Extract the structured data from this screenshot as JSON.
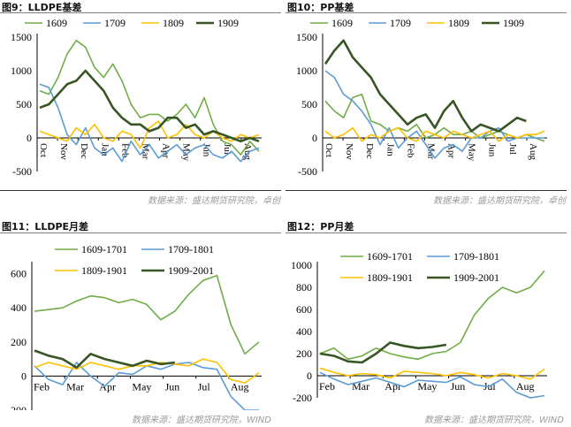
{
  "colors": {
    "green": "#70ad47",
    "blue": "#5b9bd5",
    "yellow": "#ffc000",
    "darkgreen": "#375623",
    "axis": "#000000",
    "grid": "#d9d9d9"
  },
  "panels": [
    {
      "title": "图9：LLDPE基差",
      "source": "数据来源：盛达期货研究院，卓创"
    },
    {
      "title": "图10：PP基差",
      "source": "数据来源：盛达期货研究院，卓创"
    },
    {
      "title": "图11：LLDPE月差",
      "source": "数据来源：盛达期货研究院，WIND"
    },
    {
      "title": "图12：PP月差",
      "source": "数据来源：盛达期货研究院，WIND"
    }
  ],
  "chart_data": [
    {
      "type": "line",
      "title": "LLDPE基差",
      "x_labels": [
        "Oct",
        "Nov",
        "Dec",
        "Jan",
        "Feb",
        "Mar",
        "Apr",
        "May",
        "Jun",
        "Jul",
        "Aug"
      ],
      "y_ticks": [
        -500,
        0,
        500,
        1000,
        1500
      ],
      "ylim": [
        -500,
        1500
      ],
      "legend_position": "top",
      "series": [
        {
          "name": "1609",
          "color": "green",
          "values": [
            700,
            650,
            900,
            1250,
            1450,
            1350,
            1050,
            900,
            1100,
            850,
            500,
            300,
            350,
            350,
            250,
            350,
            500,
            300,
            600,
            200,
            -50,
            -100,
            -250,
            -50,
            -200
          ]
        },
        {
          "name": "1709",
          "color": "blue",
          "values": [
            800,
            750,
            450,
            50,
            -100,
            150,
            -150,
            -250,
            -150,
            -350,
            -50,
            -250,
            -100,
            -300,
            -200,
            -100,
            -250,
            -150,
            -100,
            -250,
            -300,
            -200,
            -350,
            -200,
            -150
          ]
        },
        {
          "name": "1809",
          "color": "yellow",
          "values": [
            100,
            50,
            0,
            -50,
            150,
            50,
            200,
            0,
            -50,
            100,
            50,
            -150,
            150,
            250,
            0,
            50,
            200,
            50,
            0,
            100,
            0,
            -50,
            50,
            0,
            50
          ]
        },
        {
          "name": "1909",
          "color": "darkgreen",
          "values": [
            450,
            500,
            650,
            800,
            850,
            1000,
            850,
            700,
            450,
            300,
            200,
            200,
            100,
            150,
            300,
            300,
            150,
            200,
            50,
            100,
            50,
            0,
            -50,
            0,
            -50
          ]
        }
      ]
    },
    {
      "type": "line",
      "title": "PP基差",
      "x_labels": [
        "Oct",
        "Nov",
        "Dec",
        "Jan",
        "Feb",
        "Mar",
        "Apr",
        "May",
        "Jun",
        "Jul",
        "Aug"
      ],
      "y_ticks": [
        -500,
        0,
        500,
        1000,
        1500
      ],
      "ylim": [
        -500,
        1500
      ],
      "legend_position": "top",
      "series": [
        {
          "name": "1609",
          "color": "green",
          "values": [
            550,
            400,
            300,
            600,
            650,
            250,
            200,
            100,
            150,
            100,
            200,
            0,
            50,
            150,
            50,
            50,
            100,
            0,
            50,
            100,
            50,
            0,
            50,
            0,
            -50
          ]
        },
        {
          "name": "1709",
          "color": "blue",
          "values": [
            1000,
            900,
            650,
            550,
            400,
            200,
            -100,
            150,
            -150,
            0,
            100,
            -100,
            -300,
            -150,
            -100,
            -200,
            0,
            0,
            100,
            150,
            -50,
            0,
            0,
            0,
            0
          ]
        },
        {
          "name": "1809",
          "color": "yellow",
          "values": [
            100,
            0,
            50,
            150,
            -50,
            50,
            0,
            100,
            150,
            0,
            -50,
            100,
            50,
            0,
            100,
            50,
            0,
            50,
            100,
            -50,
            50,
            0,
            50,
            50,
            100
          ]
        },
        {
          "name": "1909",
          "color": "darkgreen",
          "values": [
            1100,
            1300,
            1450,
            1200,
            1050,
            900,
            650,
            500,
            350,
            200,
            300,
            350,
            150,
            400,
            550,
            300,
            100,
            200,
            150,
            100,
            200,
            300,
            250,
            null,
            null
          ]
        }
      ]
    },
    {
      "type": "line",
      "title": "LLDPE月差",
      "x_labels": [
        "Feb",
        "Mar",
        "Apr",
        "May",
        "Jun",
        "Jul",
        "Aug"
      ],
      "y_ticks": [
        -200,
        0,
        200,
        400,
        600
      ],
      "ylim": [
        -200,
        650
      ],
      "legend_position": "top",
      "series": [
        {
          "name": "1609-1701",
          "color": "green",
          "values": [
            380,
            390,
            400,
            440,
            470,
            460,
            430,
            450,
            420,
            330,
            380,
            480,
            560,
            590,
            300,
            130,
            200
          ]
        },
        {
          "name": "1709-1801",
          "color": "blue",
          "values": [
            60,
            -20,
            -50,
            80,
            0,
            -60,
            20,
            10,
            60,
            40,
            70,
            80,
            50,
            40,
            -120,
            -200,
            -200
          ]
        },
        {
          "name": "1809-1901",
          "color": "yellow",
          "values": [
            50,
            80,
            60,
            40,
            80,
            60,
            40,
            60,
            60,
            80,
            70,
            60,
            100,
            80,
            -20,
            -40,
            20
          ]
        },
        {
          "name": "1909-2001",
          "color": "darkgreen",
          "values": [
            150,
            120,
            100,
            50,
            130,
            100,
            80,
            60,
            90,
            70,
            80,
            null,
            null,
            null,
            null,
            null,
            null
          ]
        }
      ]
    },
    {
      "type": "line",
      "title": "PP月差",
      "x_labels": [
        "Feb",
        "Mar",
        "Apr",
        "May",
        "Jun",
        "Jul",
        "Aug"
      ],
      "y_ticks": [
        -200,
        0,
        200,
        400,
        600,
        800,
        1000
      ],
      "ylim": [
        -200,
        1000
      ],
      "legend_position": "top",
      "series": [
        {
          "name": "1609-1701",
          "color": "green",
          "values": [
            200,
            250,
            150,
            180,
            250,
            200,
            170,
            150,
            200,
            220,
            300,
            550,
            700,
            800,
            750,
            800,
            950
          ]
        },
        {
          "name": "1709-1801",
          "color": "blue",
          "values": [
            30,
            -30,
            -80,
            -50,
            -20,
            -60,
            -100,
            -40,
            -50,
            -60,
            -10,
            -80,
            -100,
            -30,
            -150,
            -200,
            -180
          ]
        },
        {
          "name": "1809-1901",
          "color": "yellow",
          "values": [
            70,
            30,
            0,
            20,
            10,
            -20,
            40,
            30,
            20,
            0,
            30,
            10,
            -20,
            20,
            0,
            -30,
            60
          ]
        },
        {
          "name": "1909-2001",
          "color": "darkgreen",
          "values": [
            200,
            180,
            130,
            120,
            200,
            300,
            270,
            250,
            260,
            280,
            null,
            null,
            null,
            null,
            null,
            null,
            null
          ]
        }
      ]
    }
  ]
}
